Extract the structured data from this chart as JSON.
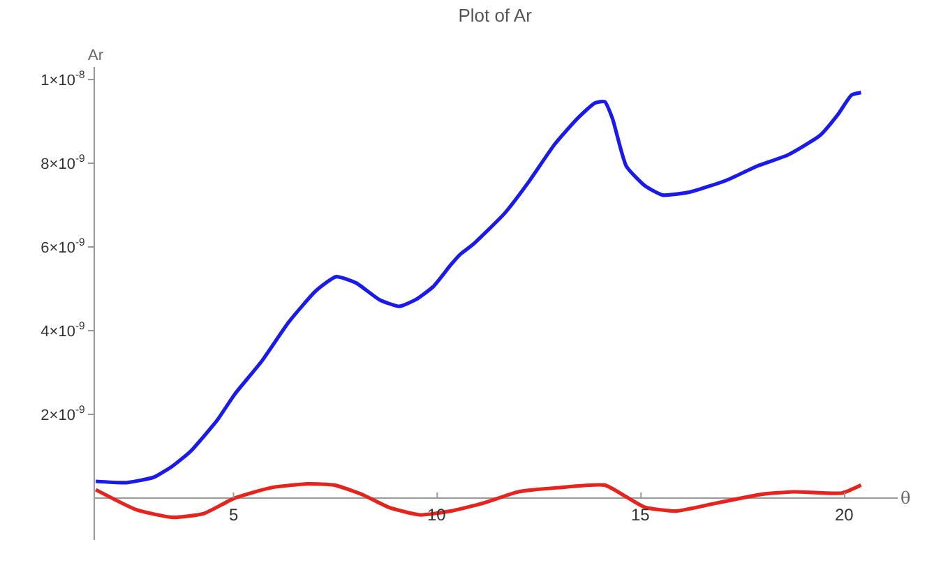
{
  "chart_data": {
    "type": "line",
    "title": "Plot of Ar",
    "xlabel": "θ",
    "ylabel": "Ar",
    "xlim": [
      1.6,
      21.3
    ],
    "xticks": [
      5,
      10,
      15,
      20
    ],
    "ylim": [
      -1e-09,
      1.03e-08
    ],
    "yticks": [
      {
        "value": 2e-09,
        "label": "2×10$^{-9}$"
      },
      {
        "value": 4e-09,
        "label": "4×10$^{-9}$"
      },
      {
        "value": 6e-09,
        "label": "6×10$^{-9}$"
      },
      {
        "value": 8e-09,
        "label": "8×10$^{-9}$"
      },
      {
        "value": 1e-08,
        "label": "1×10$^{-8}$"
      }
    ],
    "marker": "none",
    "line_style": "solid",
    "series": [
      {
        "color": "#1a1aee",
        "x": [
          1.62,
          2.38,
          3.05,
          3.51,
          3.94,
          4.6,
          5.03,
          5.7,
          6.36,
          7.02,
          7.52,
          8.01,
          8.58,
          9.07,
          9.47,
          9.9,
          10.33,
          10.56,
          10.89,
          11.66,
          12.22,
          12.88,
          13.44,
          13.87,
          14.11,
          14.3,
          14.64,
          15.1,
          15.53,
          16.19,
          17.09,
          17.85,
          18.61,
          19.4,
          19.83,
          20.17,
          20.4
        ],
        "values": [
          4e-10,
          3.7e-10,
          5e-10,
          7.7e-10,
          1.11e-09,
          1.86e-09,
          2.48e-09,
          3.28e-09,
          4.21e-09,
          4.95e-09,
          5.29e-09,
          5.14e-09,
          4.74e-09,
          4.58e-09,
          4.74e-09,
          5.05e-09,
          5.57e-09,
          5.82e-09,
          6.07e-09,
          6.81e-09,
          7.52e-09,
          8.45e-09,
          9.07e-09,
          9.44e-09,
          9.47e-09,
          9.07e-09,
          7.93e-09,
          7.46e-09,
          7.24e-09,
          7.31e-09,
          7.59e-09,
          7.93e-09,
          8.2e-09,
          8.67e-09,
          9.16e-09,
          9.63e-09,
          9.69e-09
        ]
      },
      {
        "color": "#e8231c",
        "x": [
          1.62,
          2.62,
          3.51,
          4.27,
          5.03,
          5.93,
          6.82,
          7.48,
          8.15,
          8.81,
          9.57,
          10.33,
          11.13,
          11.99,
          12.98,
          14.11,
          14.64,
          15.1,
          15.86,
          16.85,
          17.95,
          18.74,
          19.93,
          20.4
        ],
        "values": [
          2e-10,
          -2.8e-10,
          -4.6e-10,
          -3.7e-10,
          0,
          2.5e-10,
          3.4e-10,
          3.1e-10,
          9e-11,
          -2.2e-10,
          -4e-10,
          -3.1e-10,
          -1.2e-10,
          1.5e-10,
          2.5e-10,
          3.1e-10,
          3e-11,
          -2.2e-10,
          -3.1e-10,
          -1.2e-10,
          9e-11,
          1.5e-10,
          1.2e-10,
          3.1e-10
        ]
      }
    ]
  }
}
